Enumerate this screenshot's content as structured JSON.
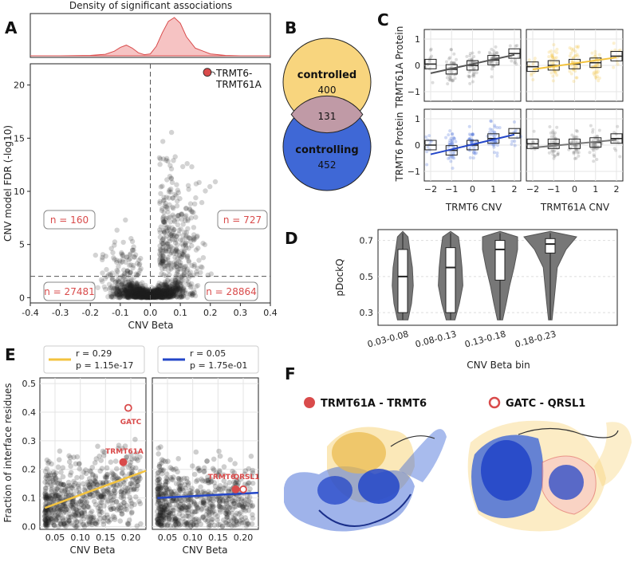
{
  "panels": {
    "A": "A",
    "B": "B",
    "C": "C",
    "D": "D",
    "E": "E",
    "F": "F"
  },
  "colors": {
    "controlled": "#f8d57e",
    "controlling": "#3f68d6",
    "red": "#d94b4b",
    "density_fill": "#f6c3c3",
    "point": "#222222",
    "gold_line": "#f3c33f",
    "blue_line": "#2346c8",
    "gray_box": "#777777"
  },
  "chart_data": [
    {
      "id": "A-density",
      "type": "area",
      "title": "Density of significant associations",
      "x": [
        -0.4,
        -0.3,
        -0.2,
        -0.15,
        -0.12,
        -0.1,
        -0.08,
        -0.06,
        -0.04,
        -0.02,
        0.0,
        0.02,
        0.04,
        0.06,
        0.08,
        0.1,
        0.12,
        0.15,
        0.2,
        0.25,
        0.3,
        0.4
      ],
      "y": [
        0.0,
        0.0,
        0.01,
        0.04,
        0.12,
        0.22,
        0.28,
        0.2,
        0.08,
        0.03,
        0.05,
        0.25,
        0.6,
        0.9,
        1.0,
        0.85,
        0.5,
        0.2,
        0.05,
        0.01,
        0.0,
        0.0
      ]
    },
    {
      "id": "A-volcano",
      "type": "scatter",
      "xlabel": "CNV Beta",
      "ylabel": "CNV model FDR (-log10)",
      "xlim": [
        -0.4,
        0.4
      ],
      "ylim": [
        -0.5,
        22
      ],
      "xticks": [
        "-0.4",
        "-0.3",
        "-0.2",
        "-0.1",
        "0.0",
        "0.1",
        "0.2",
        "0.3",
        "0.4"
      ],
      "yticks": [
        "0",
        "5",
        "10",
        "15",
        "20"
      ],
      "threshold": 2,
      "counts": {
        "top_left": "n = 160",
        "top_right": "n = 727",
        "bottom_left": "n = 27481",
        "bottom_right": "n = 28864"
      },
      "highlight": {
        "label_line1": "TRMT6-",
        "label_line2": "TRMT61A",
        "x": 0.19,
        "y": 21.2
      }
    },
    {
      "id": "B-venn",
      "type": "other",
      "sets": [
        {
          "name": "controlled",
          "only": 400
        },
        {
          "name": "controlling",
          "only": 452
        }
      ],
      "overlap": 131
    },
    {
      "id": "C-boxplots",
      "type": "scatter",
      "row_labels": [
        "TRMT61A Protein",
        "TRMT6 Protein"
      ],
      "col_labels": [
        "TRMT6 CNV",
        "TRMT61A CNV"
      ],
      "xticks": [
        "−2",
        "−1",
        "0",
        "1",
        "2"
      ],
      "yticks": [
        "1",
        "0",
        "−1"
      ],
      "medians": {
        "r0c0": [
          0.05,
          -0.15,
          0.0,
          0.2,
          0.45
        ],
        "r0c1": [
          -0.05,
          0.0,
          0.05,
          0.1,
          0.35
        ],
        "r1c0": [
          0.0,
          -0.2,
          0.0,
          0.25,
          0.45
        ],
        "r1c1": [
          0.05,
          0.05,
          0.05,
          0.1,
          0.25
        ]
      }
    },
    {
      "id": "D-violin",
      "type": "other",
      "ylabel": "pDockQ",
      "xlabel": "CNV Beta bin",
      "categories": [
        "0.03-0.08",
        "0.08-0.13",
        "0.13-0.18",
        "0.18-0.23"
      ],
      "yticks": [
        "0.7",
        "0.5",
        "0.3"
      ],
      "ylim": [
        0.23,
        0.76
      ],
      "medians": [
        0.5,
        0.55,
        0.65,
        0.68
      ],
      "q1": [
        0.3,
        0.3,
        0.48,
        0.63
      ],
      "q3": [
        0.65,
        0.66,
        0.7,
        0.71
      ]
    },
    {
      "id": "E-left",
      "type": "scatter",
      "legend_r": "r = 0.29",
      "legend_p": "p = 1.15e-17",
      "xlabel": "CNV Beta",
      "ylabel": "Fraction of interface residues",
      "xticks": [
        "0.05",
        "0.10",
        "0.15",
        "0.20"
      ],
      "yticks": [
        "0.0",
        "0.1",
        "0.2",
        "0.3",
        "0.4",
        "0.5"
      ],
      "xlim": [
        0.02,
        0.23
      ],
      "ylim": [
        -0.01,
        0.52
      ],
      "fit": [
        [
          0.03,
          0.065
        ],
        [
          0.23,
          0.195
        ]
      ],
      "labels": [
        {
          "text": "GATC",
          "x": 0.195,
          "y": 0.415,
          "open": true
        },
        {
          "text": "TRMT61A",
          "x": 0.185,
          "y": 0.225,
          "open": false
        }
      ]
    },
    {
      "id": "E-right",
      "type": "scatter",
      "legend_r": "r = 0.05",
      "legend_p": "p = 1.75e-01",
      "xlabel": "CNV Beta",
      "xticks": [
        "0.05",
        "0.10",
        "0.15",
        "0.20"
      ],
      "xlim": [
        0.02,
        0.23
      ],
      "ylim": [
        -0.01,
        0.52
      ],
      "fit": [
        [
          0.03,
          0.1
        ],
        [
          0.23,
          0.118
        ]
      ],
      "labels": [
        {
          "text": "TRMT6",
          "x": 0.185,
          "y": 0.13,
          "open": false
        },
        {
          "text": "QRSL1",
          "x": 0.2,
          "y": 0.13,
          "open": true
        }
      ]
    }
  ],
  "structures": {
    "left_label": "TRMT61A - TRMT6",
    "right_label": "GATC - QRSL1"
  }
}
